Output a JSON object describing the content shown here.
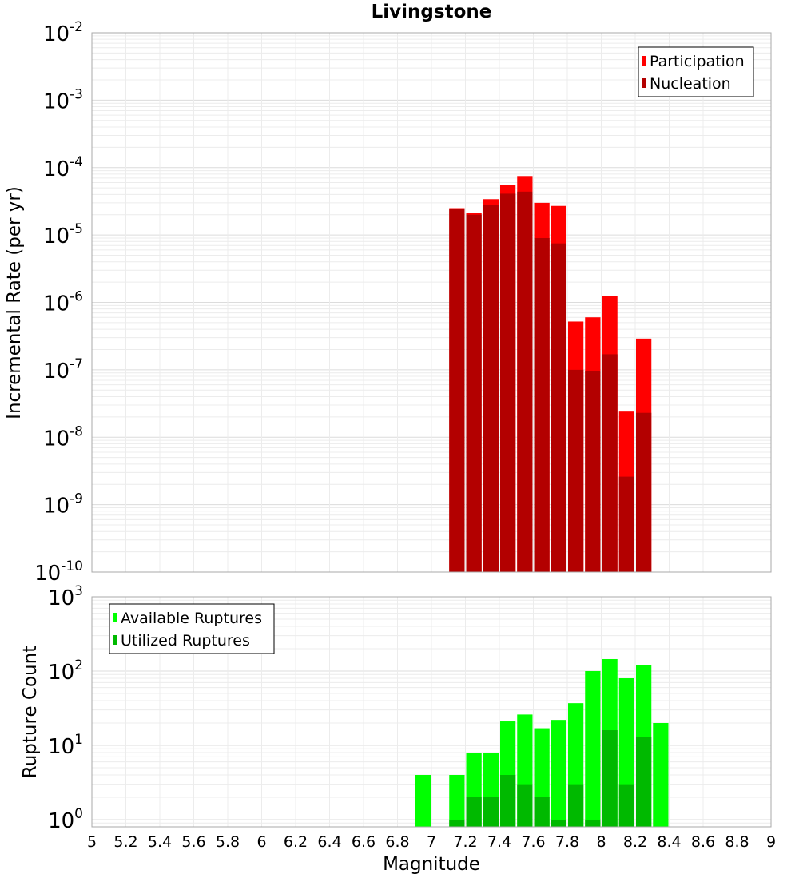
{
  "chart_data": [
    {
      "type": "bar",
      "title": "Livingstone",
      "xlabel": "",
      "ylabel": "Incremental Rate (per yr)",
      "yscale": "log",
      "ylim": [
        1e-10,
        0.01
      ],
      "xlim": [
        5,
        9
      ],
      "ytick_exponents": [
        "-10",
        "-9",
        "-8",
        "-7",
        "-6",
        "-5",
        "-4",
        "-3",
        "-2"
      ],
      "ytick_base": "10",
      "grid": true,
      "legend_position": "top-right",
      "x": [
        7.15,
        7.25,
        7.35,
        7.45,
        7.55,
        7.65,
        7.75,
        7.85,
        7.95,
        8.05,
        8.15,
        8.25
      ],
      "series": [
        {
          "name": "Participation",
          "color": "#ff0000",
          "values": [
            2.5e-05,
            2.1e-05,
            3.4e-05,
            5.5e-05,
            7.5e-05,
            3e-05,
            2.7e-05,
            5.2e-07,
            6e-07,
            1.25e-06,
            2.4e-08,
            2.9e-07
          ]
        },
        {
          "name": "Nucleation",
          "color": "#b30000",
          "values": [
            2.4e-05,
            2e-05,
            2.8e-05,
            4.1e-05,
            4.4e-05,
            9e-06,
            7.5e-06,
            1e-07,
            9.5e-08,
            1.7e-07,
            2.6e-09,
            2.3e-08
          ]
        }
      ]
    },
    {
      "type": "bar",
      "xlabel": "Magnitude",
      "ylabel": "Rupture Count",
      "yscale": "log",
      "ylim": [
        0.8,
        1000
      ],
      "xlim": [
        5,
        9
      ],
      "ytick_exponents": [
        "0",
        "1",
        "2",
        "3"
      ],
      "ytick_base": "10",
      "xticks": [
        "5",
        "5.2",
        "5.4",
        "5.6",
        "5.8",
        "6",
        "6.2",
        "6.4",
        "6.6",
        "6.8",
        "7",
        "7.2",
        "7.4",
        "7.6",
        "7.8",
        "8",
        "8.2",
        "8.4",
        "8.6",
        "8.8",
        "9"
      ],
      "grid": true,
      "legend_position": "top-left",
      "x": [
        6.95,
        7.15,
        7.25,
        7.35,
        7.45,
        7.55,
        7.65,
        7.75,
        7.85,
        7.95,
        8.05,
        8.15,
        8.25,
        8.35
      ],
      "series": [
        {
          "name": "Available Ruptures",
          "color": "#00ff00",
          "values": [
            4,
            4,
            8,
            8,
            21,
            26,
            17,
            22,
            37,
            100,
            145,
            80,
            120,
            20
          ]
        },
        {
          "name": "Utilized Ruptures",
          "color": "#00b900",
          "values": [
            0,
            1,
            2,
            2,
            4,
            3,
            2,
            1,
            3,
            1,
            16,
            3,
            13,
            0
          ]
        }
      ]
    }
  ]
}
